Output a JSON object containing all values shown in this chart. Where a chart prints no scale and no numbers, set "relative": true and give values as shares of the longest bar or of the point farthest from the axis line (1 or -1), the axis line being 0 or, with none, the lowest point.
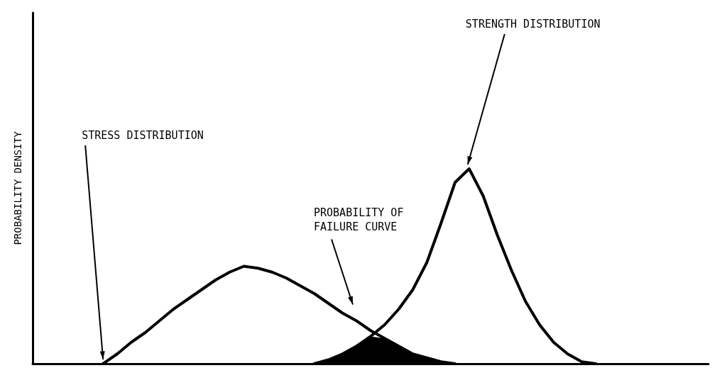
{
  "chart_data": {
    "type": "line",
    "relative": true,
    "ylabel": "PROBABILITY DENSITY",
    "grid": false,
    "legend": false,
    "marker": "none",
    "line_style": "solid",
    "categories": [
      null,
      null,
      null,
      null,
      null,
      null,
      null,
      null,
      null,
      null,
      null,
      null,
      null,
      null,
      null,
      null,
      null,
      null,
      null,
      null,
      null,
      null,
      null,
      null,
      null,
      null,
      null,
      null,
      null,
      null,
      null,
      null,
      null,
      null,
      null,
      null,
      null,
      null,
      null,
      null,
      null,
      null,
      null,
      null,
      null,
      null,
      null,
      null,
      null
    ],
    "series": [
      {
        "name": "STRESS DISTRIBUTION",
        "color": "#000000",
        "values": [
          null,
          null,
          null,
          null,
          null,
          0,
          0.05,
          0.11,
          0.16,
          0.22,
          0.28,
          0.33,
          0.38,
          0.43,
          0.47,
          0.5,
          0.49,
          0.47,
          0.44,
          0.4,
          0.36,
          0.31,
          0.26,
          0.22,
          0.17,
          0.13,
          0.09,
          0.05,
          0.03,
          0.01,
          0,
          null,
          null,
          null,
          null,
          null,
          null,
          null,
          null,
          null,
          null,
          null,
          null,
          null,
          null,
          null,
          null,
          null,
          null
        ]
      },
      {
        "name": "STRENGTH DISTRIBUTION",
        "color": "#000000",
        "values": [
          null,
          null,
          null,
          null,
          null,
          null,
          null,
          null,
          null,
          null,
          null,
          null,
          null,
          null,
          null,
          null,
          null,
          null,
          null,
          null,
          0,
          0.02,
          0.05,
          0.09,
          0.14,
          0.2,
          0.28,
          0.38,
          0.52,
          0.72,
          0.93,
          1,
          0.86,
          0.66,
          0.48,
          0.32,
          0.2,
          0.11,
          0.05,
          0.01,
          0,
          null,
          null,
          null,
          null,
          null,
          null,
          null,
          null
        ]
      },
      {
        "type": "area",
        "color": "#000000",
        "values": [
          null,
          null,
          null,
          null,
          null,
          null,
          null,
          null,
          null,
          null,
          null,
          null,
          null,
          null,
          null,
          null,
          null,
          null,
          null,
          null,
          0,
          0.02,
          0.05,
          0.09,
          0.14,
          0.13,
          0.09,
          0.05,
          0.03,
          0.01,
          0,
          null,
          null,
          null,
          null,
          null,
          null,
          null,
          null,
          null,
          null,
          null,
          null,
          null,
          null,
          null,
          null,
          null,
          null
        ]
      }
    ],
    "annotations": [
      "PROBABILITY OF FAILURE CURVE"
    ]
  }
}
